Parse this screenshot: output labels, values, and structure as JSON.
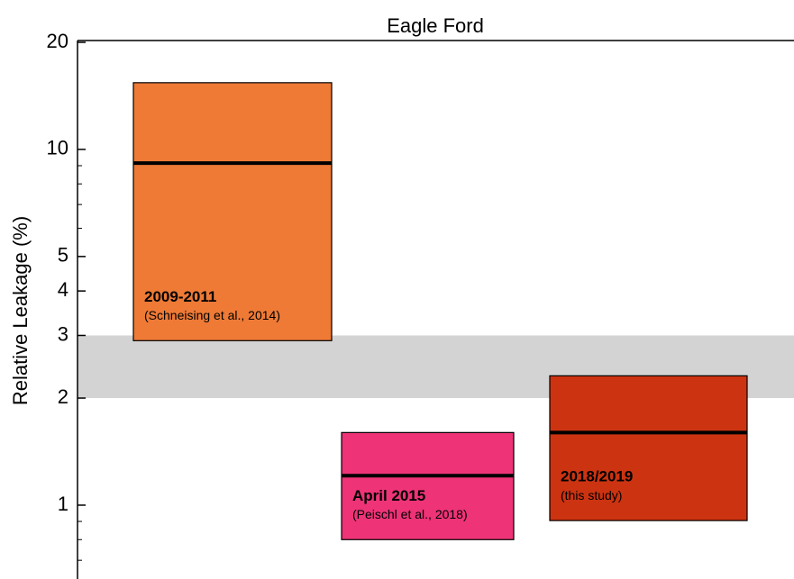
{
  "chart_data": {
    "type": "range",
    "title": "Eagle Ford",
    "ylabel": "Relative Leakage (%)",
    "log_y": true,
    "ylim": [
      0.62,
      20
    ],
    "yticks": [
      1,
      2,
      3,
      4,
      5,
      10,
      20
    ],
    "minor_yticks": [
      0.7,
      0.8,
      0.9,
      6,
      7,
      8,
      9
    ],
    "band": {
      "low": 2,
      "high": 3,
      "color": "#d3d3d3"
    },
    "series": [
      {
        "name": "2009-2011",
        "note": "(Schneising et al., 2014)",
        "low": 2.9,
        "high": 15.4,
        "median": 9.15,
        "color": "#ee7a36"
      },
      {
        "name": "April 2015",
        "note": "(Peischl et al., 2018)",
        "low": 0.8,
        "high": 1.6,
        "median": 1.21,
        "color": "#ee3377"
      },
      {
        "name": "2018/2019",
        "note": "(this study)",
        "low": 0.905,
        "high": 2.31,
        "median": 1.6,
        "color": "#cc3311"
      }
    ]
  }
}
